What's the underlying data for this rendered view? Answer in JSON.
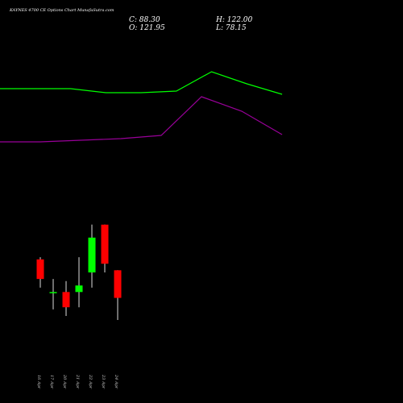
{
  "header": {
    "title": "KAYNES 4700 CE Options Chart MunafaSutra.com",
    "close_label": "C: 88.30",
    "high_label": "H: 122.00",
    "open_label": "O: 121.95",
    "low_label": "L: 78.15"
  },
  "chart_data": {
    "type": "candlestick",
    "title": "KAYNES 4700 CE Options Chart MunafaSutra.com",
    "background": "#000000",
    "up_color": "#00ff00",
    "down_color": "#ff0000",
    "x_labels": [
      "16 Apr",
      "17 Apr",
      "20 Apr",
      "21 Apr",
      "22 Apr",
      "23 Apr",
      "24 Apr"
    ],
    "candles": [
      {
        "date": "16 Apr",
        "open": 106,
        "high": 107,
        "low": 93,
        "close": 97
      },
      {
        "date": "17 Apr",
        "open": 91,
        "high": 97,
        "low": 83,
        "close": 91
      },
      {
        "date": "20 Apr",
        "open": 91,
        "high": 96,
        "low": 80,
        "close": 84
      },
      {
        "date": "21 Apr",
        "open": 91,
        "high": 107,
        "low": 84,
        "close": 94
      },
      {
        "date": "22 Apr",
        "open": 100,
        "high": 122,
        "low": 93,
        "close": 116
      },
      {
        "date": "23 Apr",
        "open": 121.95,
        "high": 122,
        "low": 100,
        "close": 104
      },
      {
        "date": "24 Apr",
        "open": 101,
        "high": 101,
        "low": 78.15,
        "close": 88.3
      }
    ],
    "upper_line": {
      "color": "#00ff00",
      "values": [
        310,
        310,
        310,
        305,
        305,
        307,
        331,
        316,
        303
      ]
    },
    "lower_line": {
      "color": "#990099",
      "values": [
        244,
        244,
        246,
        248,
        252,
        300,
        282,
        253
      ]
    }
  }
}
